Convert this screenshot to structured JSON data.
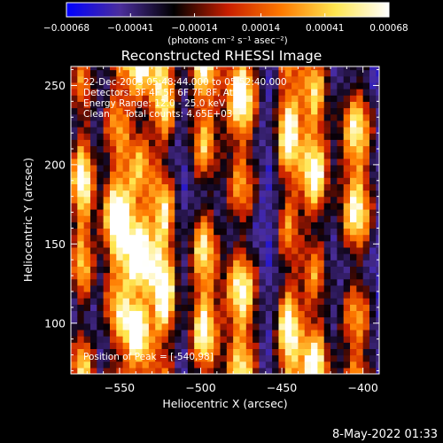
{
  "chart_data": {
    "type": "heatmap",
    "title": "Reconstructed RHESSI Image",
    "xlabel": "Heliocentric X (arcsec)",
    "ylabel": "Heliocentric Y (arcsec)",
    "xlim": [
      -580,
      -390
    ],
    "ylim": [
      68,
      262
    ],
    "x_ticks": [
      -550,
      -500,
      -450,
      -400
    ],
    "x_tick_labels": [
      "−550",
      "−500",
      "−450",
      "−400"
    ],
    "y_ticks": [
      100,
      150,
      200,
      250
    ],
    "y_tick_labels": [
      "100",
      "150",
      "200",
      "250"
    ],
    "colorbar": {
      "range": [
        -0.00068,
        0.00068
      ],
      "ticks": [
        -0.00068,
        -0.00041,
        -0.00014,
        0.00014,
        0.00041,
        0.00068
      ],
      "tick_labels": [
        "−0.00068",
        "−0.00041",
        "−0.00014",
        "0.00014",
        "0.00041",
        "0.00068"
      ],
      "unit_label": "(photons cm⁻² s⁻¹ asec⁻²)",
      "colors": [
        "#0000ff",
        "#4b2e9c",
        "#000000",
        "#c81e00",
        "#ff7a00",
        "#ffe650",
        "#ffffff"
      ]
    },
    "bright_stripes_x": [
      -573,
      -552,
      -537,
      -522,
      -498,
      -475,
      -446,
      -430,
      -404
    ],
    "peak": {
      "x": -540,
      "y": 98
    },
    "grid": false
  },
  "annotations": {
    "time_range": "22-Dec-2003 05:48:44.000 to 05:52:40.000",
    "detectors": "Detectors: 3F 4F 5F 6F 7F 8F, Att 0",
    "energy": "Energy Range: 12.0 - 25.0 keV",
    "clean": "Clean     Total counts: 4.65E+03",
    "peak": "Position of Peak = [-540,98]"
  },
  "timestamp": "8-May-2022 01:33"
}
